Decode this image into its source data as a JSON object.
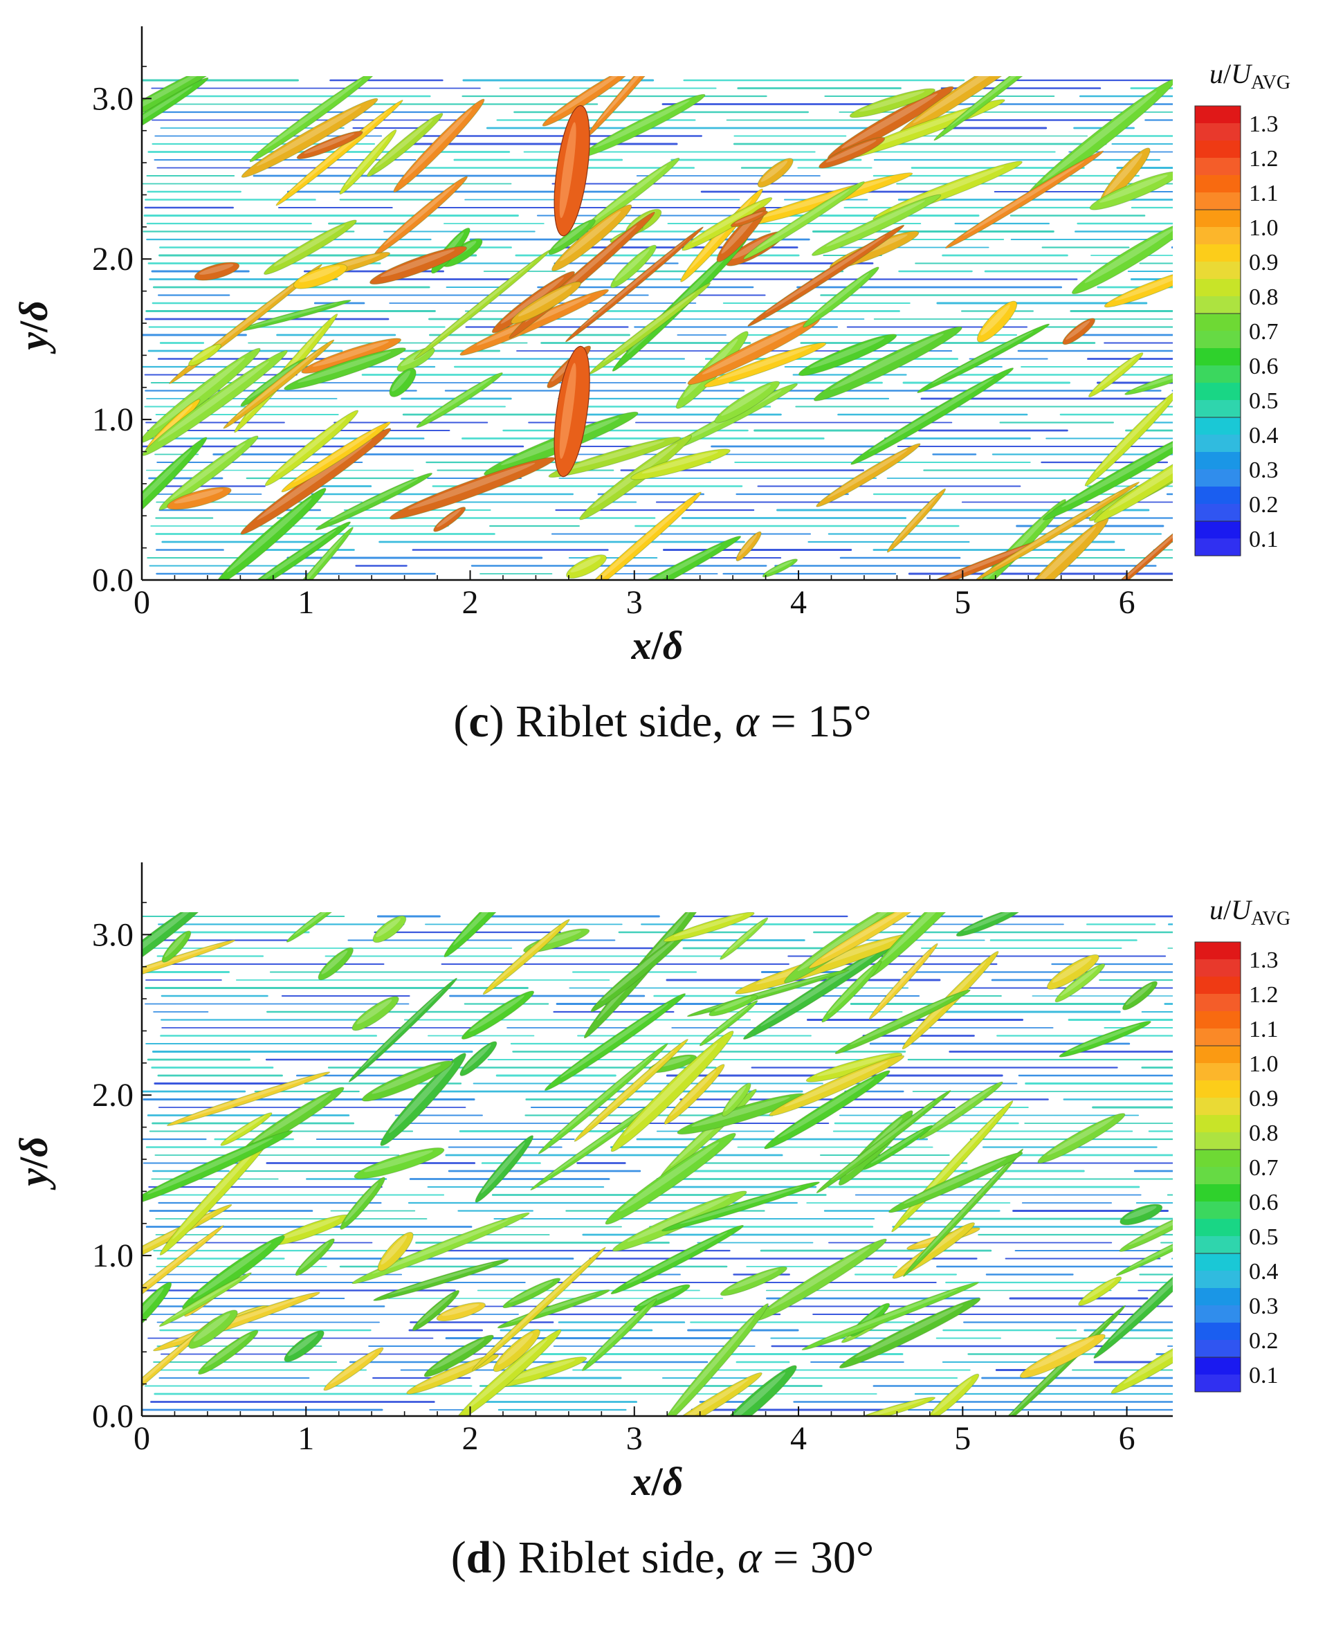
{
  "colormap": {
    "title_var": "u",
    "title_den": "U",
    "title_sub": "AVG",
    "levels": [
      "1.3",
      "1.2",
      "1.1",
      "1.0",
      "0.9",
      "0.8",
      "0.7",
      "0.6",
      "0.5",
      "0.4",
      "0.3",
      "0.2",
      "0.1"
    ],
    "colors": [
      "#e01818",
      "#ef3a14",
      "#f86a10",
      "#fb9a12",
      "#fccd1a",
      "#c8e428",
      "#6ed934",
      "#2fd12c",
      "#19d685",
      "#1ac8d6",
      "#1a96e6",
      "#1a5ef0",
      "#1a1af0"
    ]
  },
  "panels": [
    {
      "caption_letter": "c",
      "caption_prefix": "(",
      "caption_mid": ") Riblet side, ",
      "caption_symbol": "α",
      "caption_value": " = 15°",
      "alpha_deg": 15,
      "chart_data": {
        "type": "heatmap",
        "xlabel_var": "x",
        "xlabel_den": "δ",
        "ylabel_var": "y",
        "ylabel_den": "δ",
        "x_ticks": [
          "0",
          "1",
          "2",
          "3",
          "4",
          "5",
          "6"
        ],
        "y_ticks": [
          "0.0",
          "1.0",
          "2.0",
          "3.0"
        ],
        "xlim": [
          0,
          6.28
        ],
        "ylim": [
          0,
          3.45
        ],
        "colorbar_range": [
          0.1,
          1.3
        ]
      }
    },
    {
      "caption_letter": "d",
      "caption_prefix": "(",
      "caption_mid": ") Riblet side, ",
      "caption_symbol": "α",
      "caption_value": " = 30°",
      "alpha_deg": 30,
      "chart_data": {
        "type": "heatmap",
        "xlabel_var": "x",
        "xlabel_den": "δ",
        "ylabel_var": "y",
        "ylabel_den": "δ",
        "x_ticks": [
          "0",
          "1",
          "2",
          "3",
          "4",
          "5",
          "6"
        ],
        "y_ticks": [
          "0.0",
          "1.0",
          "2.0",
          "3.0"
        ],
        "xlim": [
          0,
          6.28
        ],
        "ylim": [
          0,
          3.45
        ],
        "colorbar_range": [
          0.1,
          1.3
        ]
      }
    }
  ]
}
